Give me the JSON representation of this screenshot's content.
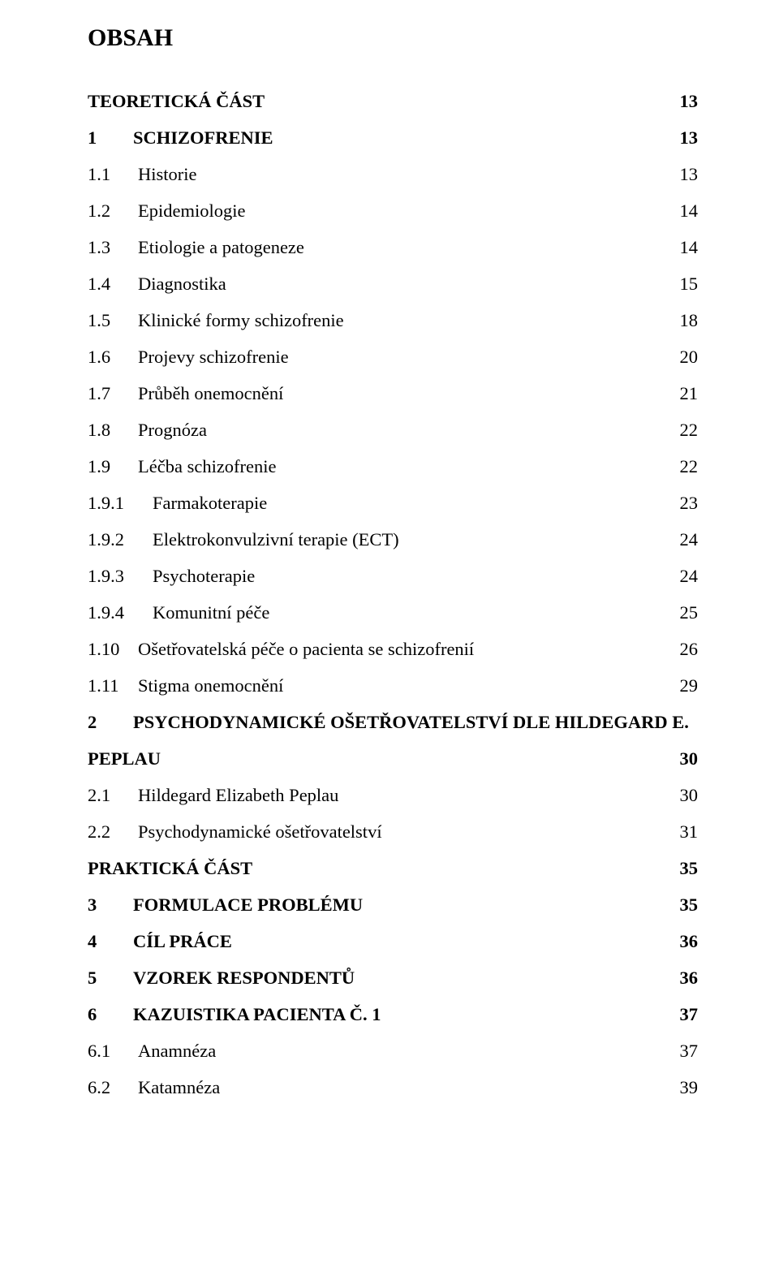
{
  "title": "OBSAH",
  "entries": [
    {
      "num": "",
      "label": "TEORETICKÁ ČÁST",
      "page": "13",
      "bold": true,
      "numClass": ""
    },
    {
      "num": "1",
      "label": "SCHIZOFRENIE",
      "page": "13",
      "bold": true,
      "numClass": "w1"
    },
    {
      "num": "1.1",
      "label": "Historie",
      "page": "13",
      "bold": false,
      "numClass": "w2"
    },
    {
      "num": "1.2",
      "label": "Epidemiologie",
      "page": "14",
      "bold": false,
      "numClass": "w2"
    },
    {
      "num": "1.3",
      "label": "Etiologie a patogeneze",
      "page": "14",
      "bold": false,
      "numClass": "w2"
    },
    {
      "num": "1.4",
      "label": "Diagnostika",
      "page": "15",
      "bold": false,
      "numClass": "w2"
    },
    {
      "num": "1.5",
      "label": "Klinické formy schizofrenie",
      "page": "18",
      "bold": false,
      "numClass": "w2"
    },
    {
      "num": "1.6",
      "label": "Projevy schizofrenie",
      "page": "20",
      "bold": false,
      "numClass": "w2"
    },
    {
      "num": "1.7",
      "label": "Průběh onemocnění",
      "page": "21",
      "bold": false,
      "numClass": "w2"
    },
    {
      "num": "1.8",
      "label": "Prognóza",
      "page": "22",
      "bold": false,
      "numClass": "w2"
    },
    {
      "num": "1.9",
      "label": "Léčba schizofrenie",
      "page": "22",
      "bold": false,
      "numClass": "w2"
    },
    {
      "num": "1.9.1",
      "label": "Farmakoterapie",
      "page": "23",
      "bold": false,
      "numClass": "w3"
    },
    {
      "num": "1.9.2",
      "label": "Elektrokonvulzivní terapie (ECT)",
      "page": "24",
      "bold": false,
      "numClass": "w3"
    },
    {
      "num": "1.9.3",
      "label": "Psychoterapie",
      "page": "24",
      "bold": false,
      "numClass": "w3"
    },
    {
      "num": "1.9.4",
      "label": "Komunitní péče",
      "page": "25",
      "bold": false,
      "numClass": "w3"
    },
    {
      "num": "1.10",
      "label": "Ošetřovatelská péče o pacienta se schizofrenií",
      "page": "26",
      "bold": false,
      "numClass": "w2"
    },
    {
      "num": "1.11",
      "label": "Stigma onemocnění",
      "page": "29",
      "bold": false,
      "numClass": "w2"
    },
    {
      "num": "2",
      "label": "PSYCHODYNAMICKÉ OŠETŘOVATELSTVÍ DLE HILDEGARD E.",
      "page": "",
      "bold": true,
      "numClass": "w1"
    },
    {
      "num": "",
      "label": "PEPLAU",
      "page": "30",
      "bold": true,
      "numClass": ""
    },
    {
      "num": "2.1",
      "label": "Hildegard Elizabeth Peplau",
      "page": "30",
      "bold": false,
      "numClass": "w2"
    },
    {
      "num": "2.2",
      "label": "Psychodynamické ošetřovatelství",
      "page": "31",
      "bold": false,
      "numClass": "w2"
    },
    {
      "num": "",
      "label": "PRAKTICKÁ ČÁST",
      "page": "35",
      "bold": true,
      "numClass": ""
    },
    {
      "num": "3",
      "label": "FORMULACE PROBLÉMU",
      "page": "35",
      "bold": true,
      "numClass": "w1"
    },
    {
      "num": "4",
      "label": "CÍL PRÁCE",
      "page": "36",
      "bold": true,
      "numClass": "w1"
    },
    {
      "num": "5",
      "label": "VZOREK RESPONDENTŮ",
      "page": "36",
      "bold": true,
      "numClass": "w1"
    },
    {
      "num": "6",
      "label": "KAZUISTIKA PACIENTA Č. 1",
      "page": "37",
      "bold": true,
      "numClass": "w1"
    },
    {
      "num": "6.1",
      "label": "Anamnéza",
      "page": "37",
      "bold": false,
      "numClass": "w2"
    },
    {
      "num": "6.2",
      "label": "Katamnéza",
      "page": "39",
      "bold": false,
      "numClass": "w2"
    }
  ]
}
